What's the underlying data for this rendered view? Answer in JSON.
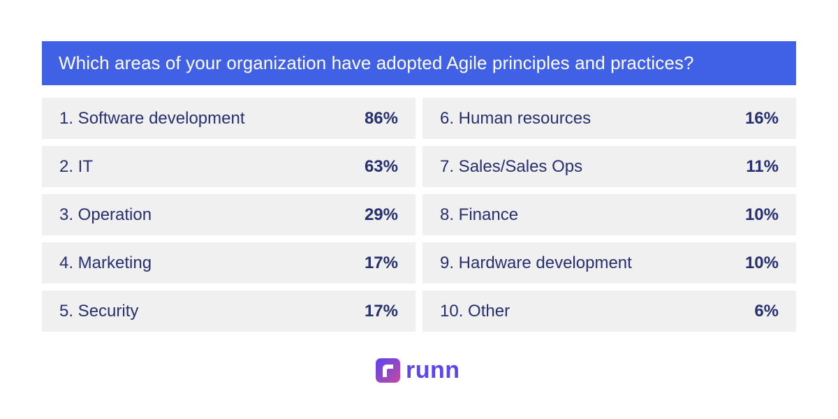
{
  "colors": {
    "header_bg": "#4060e6",
    "row_bg": "#f0f0f0",
    "text": "#262f70",
    "brand_gradient_start": "#5b45f0",
    "brand_gradient_end": "#c44aa0"
  },
  "header": {
    "title": "Which areas of your organization have adopted Agile principles and practices?"
  },
  "rows": [
    {
      "label": "1. Software development",
      "value": "86%"
    },
    {
      "label": "2. IT",
      "value": "63%"
    },
    {
      "label": "3. Operation",
      "value": "29%"
    },
    {
      "label": "4. Marketing",
      "value": "17%"
    },
    {
      "label": "5. Security",
      "value": "17%"
    },
    {
      "label": "6. Human resources",
      "value": "16%"
    },
    {
      "label": "7. Sales/Sales Ops",
      "value": "11%"
    },
    {
      "label": "8. Finance",
      "value": "10%"
    },
    {
      "label": "9. Hardware development",
      "value": "10%"
    },
    {
      "label": "10. Other",
      "value": "6%"
    }
  ],
  "chart_data": {
    "type": "table",
    "title": "Which areas of your organization have adopted Agile principles and practices?",
    "categories": [
      "Software development",
      "IT",
      "Operation",
      "Marketing",
      "Security",
      "Human resources",
      "Sales/Sales Ops",
      "Finance",
      "Hardware development",
      "Other"
    ],
    "values": [
      86,
      63,
      29,
      17,
      17,
      16,
      11,
      10,
      10,
      6
    ]
  },
  "brand": {
    "name": "runn",
    "logo_icon": "runn-logo-icon"
  }
}
